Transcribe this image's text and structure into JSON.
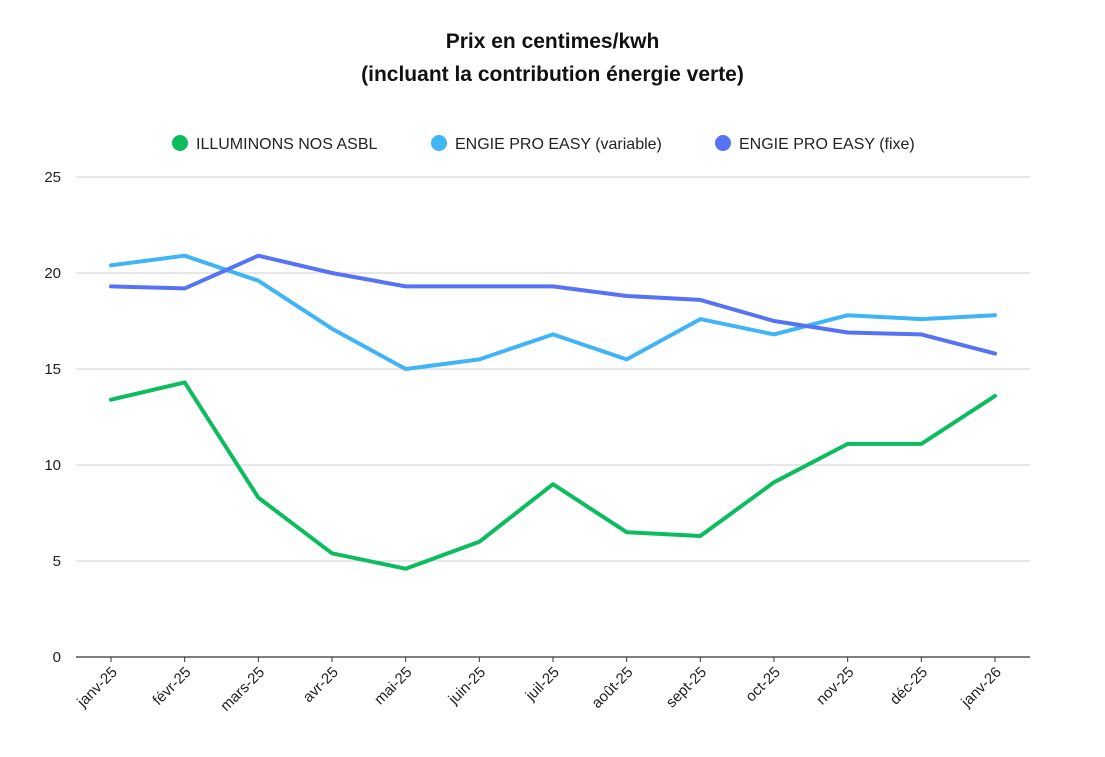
{
  "chart_data": {
    "type": "line",
    "title_lines": [
      "Prix en centimes/kwh",
      "(incluant la contribution énergie verte)"
    ],
    "categories": [
      "janv-25",
      "févr-25",
      "mars-25",
      "avr-25",
      "mai-25",
      "juin-25",
      "juil-25",
      "août-25",
      "sept-25",
      "oct-25",
      "nov-25",
      "déc-25",
      "janv-26"
    ],
    "series": [
      {
        "name": "ILLUMINONS NOS ASBL",
        "color": "#0bbd5e",
        "values": [
          13.4,
          14.3,
          8.3,
          5.4,
          4.6,
          6.0,
          9.0,
          6.5,
          6.3,
          9.1,
          11.1,
          11.1,
          13.6
        ]
      },
      {
        "name": "ENGIE PRO EASY (variable)",
        "color": "#3fb4f6",
        "values": [
          20.4,
          20.9,
          19.6,
          17.1,
          15.0,
          15.5,
          16.8,
          15.5,
          17.6,
          16.8,
          17.8,
          17.6,
          17.8
        ]
      },
      {
        "name": "ENGIE PRO EASY (fixe)",
        "color": "#5773f5",
        "values": [
          19.3,
          19.2,
          20.9,
          20.0,
          19.3,
          19.3,
          19.3,
          18.8,
          18.6,
          17.5,
          16.9,
          16.8,
          15.8
        ]
      }
    ],
    "yticks": [
      0,
      5,
      10,
      15,
      20,
      25
    ],
    "ylim": [
      0,
      25
    ],
    "grid": true,
    "legend_position": "top-center"
  }
}
